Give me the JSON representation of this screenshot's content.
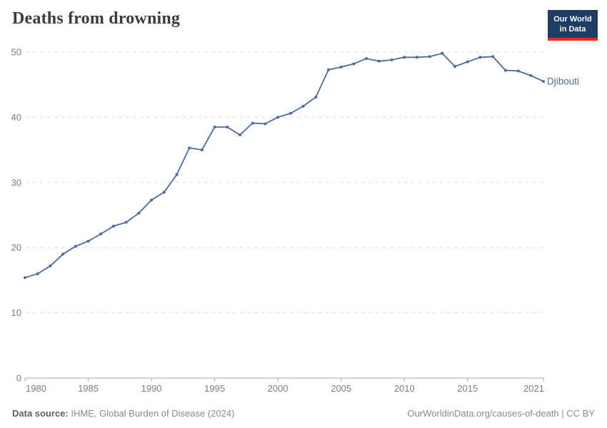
{
  "header": {
    "title": "Deaths from drowning",
    "logo": {
      "line1": "Our World",
      "line2": "in Data",
      "bg_color": "#1d3d63",
      "accent_color": "#e62b25"
    }
  },
  "chart_data": {
    "type": "line",
    "title": "Deaths from drowning",
    "xlabel": "",
    "ylabel": "",
    "xlim": [
      1980,
      2021
    ],
    "ylim": [
      0,
      50
    ],
    "grid": "horizontal-dashed",
    "legend_position": "end-of-line-label",
    "yticks": [
      0,
      10,
      20,
      30,
      40,
      50
    ],
    "xticks": [
      1980,
      1985,
      1990,
      1995,
      2000,
      2005,
      2010,
      2015,
      2021
    ],
    "x": [
      1980,
      1981,
      1982,
      1983,
      1984,
      1985,
      1986,
      1987,
      1988,
      1989,
      1990,
      1991,
      1992,
      1993,
      1994,
      1995,
      1996,
      1997,
      1998,
      1999,
      2000,
      2001,
      2002,
      2003,
      2004,
      2005,
      2006,
      2007,
      2008,
      2009,
      2010,
      2011,
      2012,
      2013,
      2014,
      2015,
      2016,
      2017,
      2018,
      2019,
      2020,
      2021
    ],
    "series": [
      {
        "name": "Djibouti",
        "color": "#4c6a9c",
        "values": [
          15.4,
          16.0,
          17.2,
          19.0,
          20.2,
          21.0,
          22.1,
          23.3,
          23.9,
          25.3,
          27.3,
          28.5,
          31.2,
          35.3,
          35.0,
          38.5,
          38.5,
          37.3,
          39.1,
          39.0,
          40.0,
          40.6,
          41.7,
          43.1,
          47.3,
          47.7,
          48.2,
          49.0,
          48.6,
          48.8,
          49.2,
          49.2,
          49.3,
          49.8,
          47.8,
          48.5,
          49.2,
          49.3,
          47.2,
          47.1,
          46.4,
          45.5
        ]
      }
    ],
    "colors": {
      "gridline": "#dedede",
      "axis": "#a8a8a8",
      "tick_label": "#7d7d7d"
    }
  },
  "footer": {
    "datasource_label": "Data source:",
    "datasource_value": " IHME, Global Burden of Disease (2024)",
    "credit": "OurWorldinData.org/causes-of-death | CC BY"
  }
}
